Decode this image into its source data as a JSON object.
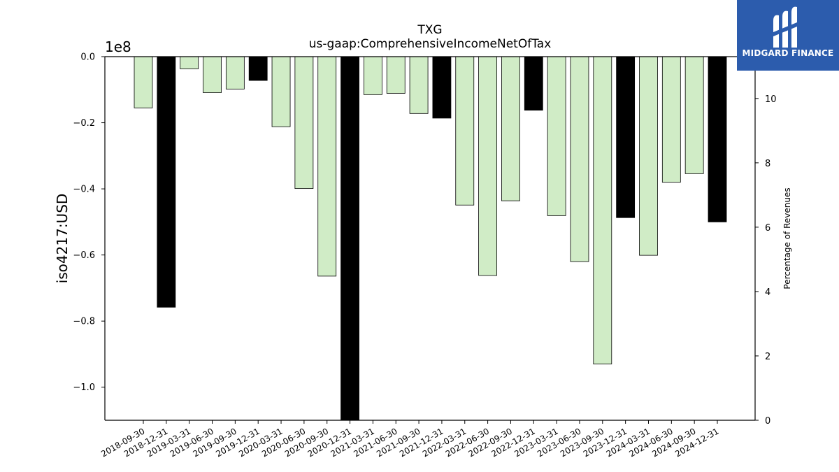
{
  "brand": {
    "name": "MIDGARD FINANCE",
    "bg_color": "#2c5cad"
  },
  "chart_data": {
    "type": "bar",
    "title": "TXG",
    "subtitle": "us-gaap:ComprehensiveIncomeNetOfTax",
    "ylabel": "iso4217:USD",
    "y_offset_label": "1e8",
    "y2label": "Percentage of Revenues",
    "ylim": [
      -1.1,
      0.0
    ],
    "yticks": [
      0.0,
      -0.2,
      -0.4,
      -0.6,
      -0.8,
      -1.0
    ],
    "ytick_labels": [
      "0.0",
      "−0.2",
      "−0.4",
      "−0.6",
      "−0.8",
      "−1.0"
    ],
    "y2lim": [
      0,
      11.3
    ],
    "y2ticks": [
      0,
      2,
      4,
      6,
      8,
      10
    ],
    "y2tick_labels": [
      "0",
      "2",
      "4",
      "6",
      "8",
      "10"
    ],
    "categories": [
      "2018-09-30",
      "2018-12-31",
      "2019-03-31",
      "2019-06-30",
      "2019-09-30",
      "2019-12-31",
      "2020-03-31",
      "2020-06-30",
      "2020-09-30",
      "2020-12-31",
      "2021-03-31",
      "2021-06-30",
      "2021-09-30",
      "2021-12-31",
      "2022-03-31",
      "2022-06-30",
      "2022-09-30",
      "2022-12-31",
      "2023-03-31",
      "2023-06-30",
      "2023-09-30",
      "2023-12-31",
      "2024-03-31",
      "2024-06-30",
      "2024-09-30",
      "2024-12-31"
    ],
    "values": [
      -0.155,
      -0.758,
      -0.037,
      -0.109,
      -0.098,
      -0.072,
      -0.212,
      -0.399,
      -0.664,
      -1.1,
      -0.115,
      -0.111,
      -0.172,
      -0.186,
      -0.449,
      -0.662,
      -0.436,
      -0.162,
      -0.481,
      -0.62,
      -0.93,
      -0.487,
      -0.601,
      -0.38,
      -0.354,
      -0.5
    ],
    "bar_kinds": [
      "q",
      "fy",
      "q",
      "q",
      "q",
      "fy",
      "q",
      "q",
      "q",
      "fy",
      "q",
      "q",
      "q",
      "fy",
      "q",
      "q",
      "q",
      "fy",
      "q",
      "q",
      "q",
      "fy",
      "q",
      "q",
      "q",
      "fy"
    ],
    "colors": {
      "q": "#d0ecc6",
      "fy": "#000000"
    },
    "grid": false
  }
}
